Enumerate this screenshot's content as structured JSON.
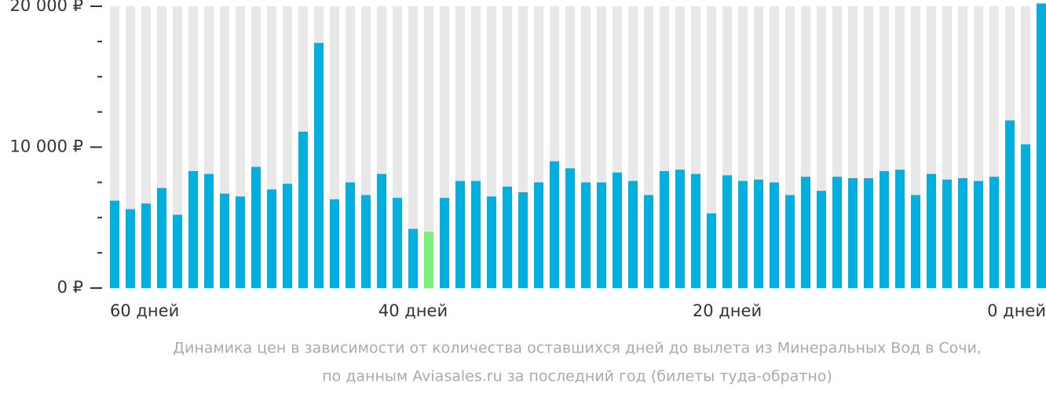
{
  "chart_data": {
    "type": "bar",
    "caption": [
      "Динамика цен в зависимости от количества оставшихся дней до вылета из Минеральных Вод в Сочи,",
      "по данным Aviasales.ru за последний год (билеты туда-обратно)"
    ],
    "categories": [
      "60 дней",
      null,
      null,
      null,
      null,
      null,
      null,
      null,
      null,
      null,
      null,
      null,
      null,
      null,
      null,
      null,
      null,
      null,
      null,
      "40 дней",
      null,
      null,
      null,
      null,
      null,
      null,
      null,
      null,
      null,
      null,
      null,
      null,
      null,
      null,
      null,
      null,
      null,
      null,
      null,
      "20 дней",
      null,
      null,
      null,
      null,
      null,
      null,
      null,
      null,
      null,
      null,
      null,
      null,
      null,
      null,
      null,
      null,
      null,
      null,
      null,
      "0 дней"
    ],
    "values": [
      6200,
      5600,
      6000,
      7100,
      5200,
      8300,
      8100,
      6700,
      6500,
      8600,
      7000,
      7400,
      11100,
      17400,
      6300,
      7500,
      6600,
      8100,
      6400,
      4200,
      4000,
      6400,
      7600,
      7600,
      6500,
      7200,
      6800,
      7500,
      9000,
      8500,
      7500,
      7500,
      8200,
      7600,
      6600,
      8300,
      8400,
      8100,
      5300,
      8000,
      7600,
      7700,
      7500,
      6600,
      7900,
      6900,
      7900,
      7800,
      7800,
      8300,
      8400,
      6600,
      8100,
      7700,
      7800,
      7600,
      7900,
      11900,
      10200,
      20200
    ],
    "color": "#04afde",
    "min_color": "#7cf07c",
    "background_bar_color": "#e8e8e8",
    "ylim": [
      0,
      20000
    ],
    "yticks": [
      {
        "value": 0,
        "label": "0 ₽"
      },
      {
        "value": 10000,
        "label": "10 000 ₽"
      },
      {
        "value": 20000,
        "label": "20 000 ₽"
      }
    ],
    "minor_yticks": [
      2500,
      5000,
      7500,
      12500,
      15000,
      17500
    ]
  }
}
